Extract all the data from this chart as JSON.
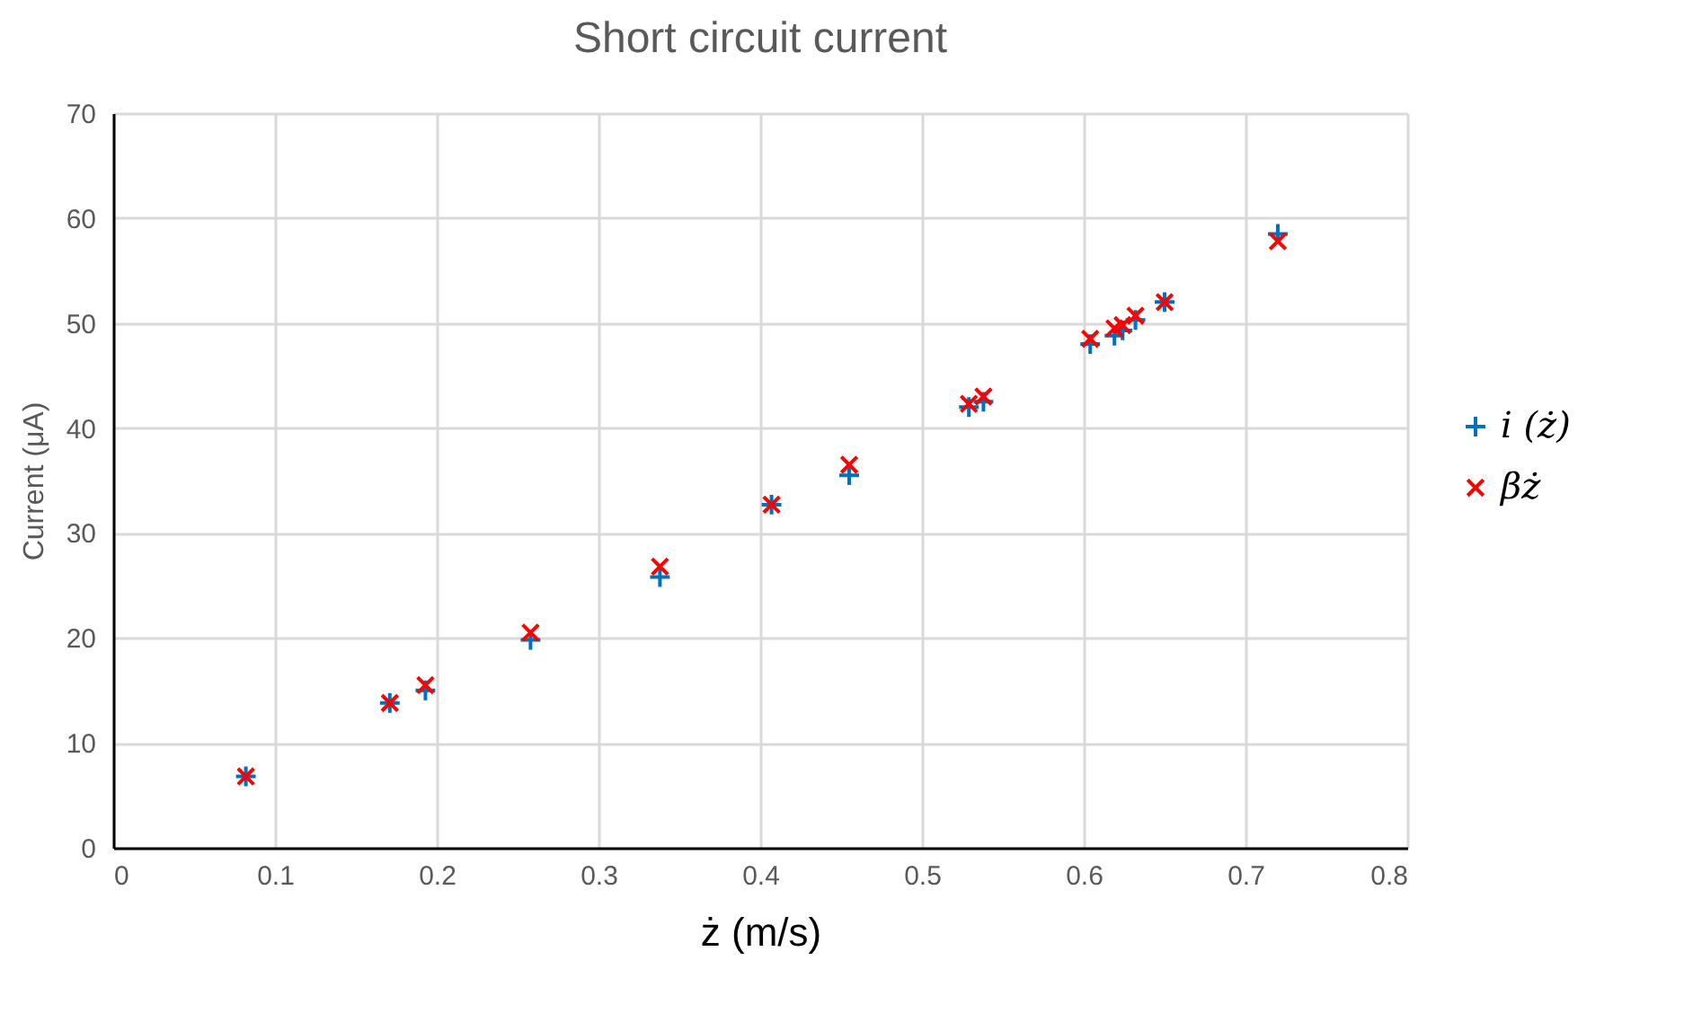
{
  "chart_data": {
    "type": "scatter",
    "title": "Short circuit current",
    "xlabel": "ż (m/s)",
    "ylabel": "Current (μA)",
    "xlim": [
      0,
      0.8
    ],
    "xticks": [
      0,
      0.1,
      0.2,
      0.3,
      0.4,
      0.5,
      0.6,
      0.7,
      0.8
    ],
    "ylim": [
      0,
      70
    ],
    "yticks": [
      0,
      10,
      20,
      30,
      40,
      50,
      60,
      70
    ],
    "grid": true,
    "legend": "right",
    "marker": "cross",
    "x": [
      0.082,
      0.171,
      0.193,
      0.258,
      0.338,
      0.407,
      0.455,
      0.529,
      0.538,
      0.604,
      0.619,
      0.624,
      0.632,
      0.65,
      0.72
    ],
    "series": [
      {
        "name": "i (ż)",
        "color": "#0070c0",
        "values": [
          6.8,
          13.8,
          15.0,
          19.8,
          25.8,
          32.7,
          35.5,
          42.0,
          42.5,
          48.0,
          48.8,
          49.3,
          50.3,
          52.0,
          58.5
        ]
      },
      {
        "name": "βż",
        "color": "#ff0000",
        "values": [
          6.8,
          13.8,
          15.5,
          20.5,
          26.8,
          32.7,
          36.5,
          42.3,
          43.0,
          48.5,
          49.5,
          49.8,
          50.7,
          52.0,
          57.8
        ]
      }
    ]
  }
}
